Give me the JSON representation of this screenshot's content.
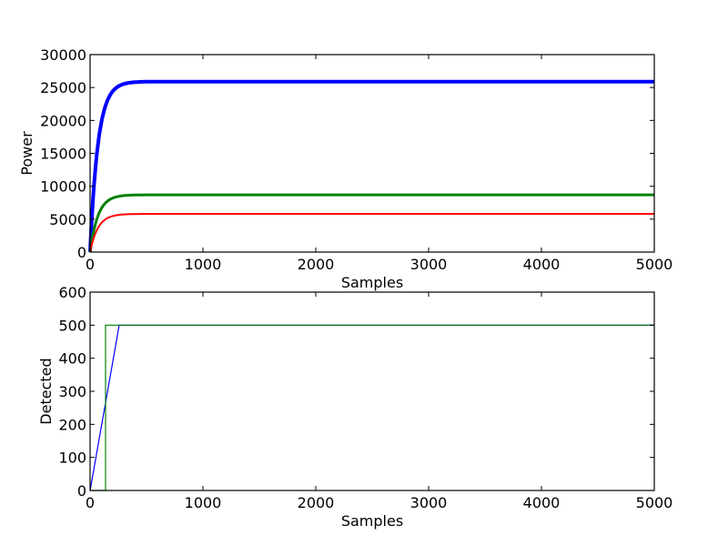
{
  "chart_data": [
    {
      "type": "line",
      "title": "",
      "xlabel": "Samples",
      "ylabel": "Power",
      "xlim": [
        0,
        5000
      ],
      "ylim": [
        0,
        30000
      ],
      "xticks": [
        "0",
        "1000",
        "2000",
        "3000",
        "4000",
        "5000"
      ],
      "yticks": [
        "0",
        "5000",
        "10000",
        "15000",
        "20000",
        "25000",
        "30000"
      ],
      "grid": false,
      "legend": null,
      "series": [
        {
          "name": "blue",
          "color": "#0000ff",
          "shape": "exponential rise",
          "plateau": 25900,
          "tau": 70,
          "x": [
            0,
            50,
            100,
            150,
            200,
            300,
            400,
            5000
          ],
          "values": [
            0,
            13300,
            19900,
            23300,
            24800,
            25700,
            25900,
            25900
          ]
        },
        {
          "name": "green",
          "color": "#008000",
          "shape": "exponential rise",
          "plateau": 8700,
          "tau": 70,
          "x": [
            0,
            50,
            100,
            150,
            200,
            300,
            400,
            5000
          ],
          "values": [
            0,
            4470,
            6700,
            7800,
            8300,
            8630,
            8700,
            8700
          ]
        },
        {
          "name": "red",
          "color": "#ff0000",
          "shape": "exponential rise",
          "plateau": 5800,
          "tau": 70,
          "x": [
            0,
            50,
            100,
            150,
            200,
            300,
            400,
            5000
          ],
          "values": [
            0,
            2980,
            4450,
            5200,
            5550,
            5760,
            5800,
            5800
          ]
        }
      ]
    },
    {
      "type": "line",
      "title": "",
      "xlabel": "Samples",
      "ylabel": "Detected",
      "xlim": [
        0,
        5000
      ],
      "ylim": [
        0,
        600
      ],
      "xticks": [
        "0",
        "1000",
        "2000",
        "3000",
        "4000",
        "5000"
      ],
      "yticks": [
        "0",
        "100",
        "200",
        "300",
        "400",
        "500",
        "600"
      ],
      "grid": false,
      "legend": null,
      "series": [
        {
          "name": "blue",
          "color": "#0000ff",
          "x": [
            0,
            258,
            5000
          ],
          "values": [
            0,
            500,
            500
          ]
        },
        {
          "name": "green",
          "color": "#008000",
          "x": [
            0,
            137,
            137,
            5000
          ],
          "values": [
            0,
            0,
            500,
            500
          ]
        }
      ]
    }
  ]
}
